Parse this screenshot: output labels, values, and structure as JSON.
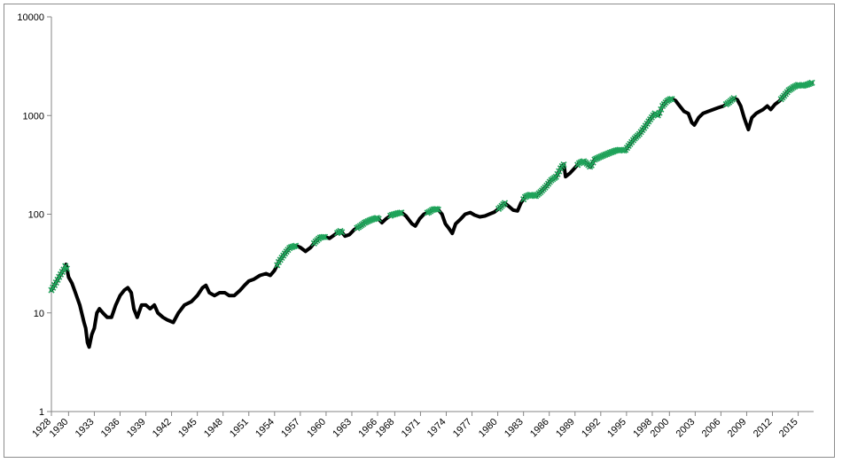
{
  "chart_data": {
    "type": "line",
    "y_scale": "log",
    "ylim": [
      1,
      10000
    ],
    "xlim": [
      1928,
      2016.8
    ],
    "y_ticks": [
      "1",
      "10",
      "100",
      "1000",
      "10000"
    ],
    "x_ticks": [
      "1928",
      "1930",
      "1933",
      "1936",
      "1939",
      "1942",
      "1945",
      "1948",
      "1951",
      "1954",
      "1957",
      "1960",
      "1963",
      "1966",
      "1968",
      "1971",
      "1974",
      "1977",
      "1980",
      "1983",
      "1986",
      "1989",
      "1992",
      "1995",
      "1998",
      "2000",
      "2003",
      "2006",
      "2009",
      "2012",
      "2015"
    ],
    "grid": false,
    "legend": "none",
    "series": [
      {
        "line_color": "#000000",
        "marker_color": "#1fa35a",
        "points": [
          [
            1928.0,
            17
          ],
          [
            1928.5,
            20
          ],
          [
            1929.0,
            24
          ],
          [
            1929.5,
            28
          ],
          [
            1929.7,
            31
          ],
          [
            1930.0,
            23
          ],
          [
            1930.4,
            20
          ],
          [
            1930.8,
            16
          ],
          [
            1931.3,
            12
          ],
          [
            1931.8,
            8
          ],
          [
            1932.0,
            7
          ],
          [
            1932.2,
            5
          ],
          [
            1932.4,
            4.5
          ],
          [
            1932.7,
            6
          ],
          [
            1933.0,
            7
          ],
          [
            1933.3,
            10
          ],
          [
            1933.6,
            11
          ],
          [
            1934.0,
            10
          ],
          [
            1934.5,
            9
          ],
          [
            1935.0,
            9
          ],
          [
            1935.5,
            12
          ],
          [
            1936.0,
            15
          ],
          [
            1936.5,
            17
          ],
          [
            1936.9,
            18
          ],
          [
            1937.3,
            16
          ],
          [
            1937.6,
            11
          ],
          [
            1938.0,
            9
          ],
          [
            1938.5,
            12
          ],
          [
            1939.0,
            12
          ],
          [
            1939.5,
            11
          ],
          [
            1940.0,
            12
          ],
          [
            1940.4,
            10
          ],
          [
            1941.0,
            9
          ],
          [
            1941.5,
            8.5
          ],
          [
            1942.2,
            8
          ],
          [
            1942.8,
            10
          ],
          [
            1943.5,
            12
          ],
          [
            1944.3,
            13
          ],
          [
            1945.0,
            15
          ],
          [
            1945.6,
            18
          ],
          [
            1946.0,
            19
          ],
          [
            1946.4,
            16
          ],
          [
            1947.0,
            15
          ],
          [
            1947.6,
            16
          ],
          [
            1948.2,
            16
          ],
          [
            1948.7,
            15
          ],
          [
            1949.3,
            15
          ],
          [
            1950.0,
            17
          ],
          [
            1950.5,
            19
          ],
          [
            1951.0,
            21
          ],
          [
            1951.6,
            22
          ],
          [
            1952.3,
            24
          ],
          [
            1953.0,
            25
          ],
          [
            1953.5,
            24
          ],
          [
            1954.0,
            27
          ],
          [
            1954.5,
            33
          ],
          [
            1955.2,
            40
          ],
          [
            1955.8,
            46
          ],
          [
            1956.5,
            48
          ],
          [
            1957.0,
            46
          ],
          [
            1957.6,
            42
          ],
          [
            1958.2,
            46
          ],
          [
            1958.7,
            52
          ],
          [
            1959.3,
            58
          ],
          [
            1959.8,
            59
          ],
          [
            1960.4,
            57
          ],
          [
            1961.0,
            62
          ],
          [
            1961.7,
            68
          ],
          [
            1962.2,
            60
          ],
          [
            1962.7,
            62
          ],
          [
            1963.3,
            70
          ],
          [
            1963.9,
            75
          ],
          [
            1964.5,
            82
          ],
          [
            1965.0,
            86
          ],
          [
            1965.6,
            90
          ],
          [
            1966.0,
            92
          ],
          [
            1966.5,
            82
          ],
          [
            1967.0,
            90
          ],
          [
            1967.6,
            98
          ],
          [
            1968.3,
            102
          ],
          [
            1968.8,
            104
          ],
          [
            1969.3,
            96
          ],
          [
            1970.0,
            80
          ],
          [
            1970.4,
            76
          ],
          [
            1970.9,
            90
          ],
          [
            1971.4,
            100
          ],
          [
            1971.9,
            104
          ],
          [
            1972.5,
            112
          ],
          [
            1973.0,
            113
          ],
          [
            1973.5,
            100
          ],
          [
            1973.9,
            80
          ],
          [
            1974.3,
            72
          ],
          [
            1974.7,
            64
          ],
          [
            1975.1,
            80
          ],
          [
            1975.6,
            88
          ],
          [
            1976.2,
            100
          ],
          [
            1976.8,
            104
          ],
          [
            1977.3,
            98
          ],
          [
            1977.9,
            94
          ],
          [
            1978.5,
            96
          ],
          [
            1979.0,
            100
          ],
          [
            1979.6,
            105
          ],
          [
            1980.2,
            115
          ],
          [
            1980.8,
            130
          ],
          [
            1981.2,
            122
          ],
          [
            1981.8,
            110
          ],
          [
            1982.3,
            108
          ],
          [
            1982.7,
            130
          ],
          [
            1983.2,
            150
          ],
          [
            1983.8,
            158
          ],
          [
            1984.4,
            152
          ],
          [
            1985.0,
            168
          ],
          [
            1985.6,
            190
          ],
          [
            1986.2,
            220
          ],
          [
            1986.8,
            240
          ],
          [
            1987.4,
            300
          ],
          [
            1987.7,
            320
          ],
          [
            1987.9,
            240
          ],
          [
            1988.4,
            260
          ],
          [
            1988.9,
            290
          ],
          [
            1989.5,
            330
          ],
          [
            1990.0,
            345
          ],
          [
            1990.5,
            320
          ],
          [
            1990.8,
            300
          ],
          [
            1991.3,
            360
          ],
          [
            1991.9,
            380
          ],
          [
            1992.5,
            400
          ],
          [
            1993.1,
            420
          ],
          [
            1993.7,
            440
          ],
          [
            1994.2,
            450
          ],
          [
            1994.8,
            440
          ],
          [
            1995.3,
            500
          ],
          [
            1995.9,
            580
          ],
          [
            1996.5,
            650
          ],
          [
            1997.1,
            760
          ],
          [
            1997.7,
            900
          ],
          [
            1998.3,
            1050
          ],
          [
            1998.7,
            1000
          ],
          [
            1999.2,
            1250
          ],
          [
            1999.7,
            1400
          ],
          [
            2000.2,
            1480
          ],
          [
            2000.7,
            1420
          ],
          [
            2001.2,
            1250
          ],
          [
            2001.7,
            1100
          ],
          [
            2002.2,
            1050
          ],
          [
            2002.6,
            850
          ],
          [
            2002.9,
            800
          ],
          [
            2003.4,
            950
          ],
          [
            2003.9,
            1050
          ],
          [
            2004.5,
            1100
          ],
          [
            2005.1,
            1150
          ],
          [
            2005.7,
            1200
          ],
          [
            2006.3,
            1250
          ],
          [
            2006.9,
            1350
          ],
          [
            2007.5,
            1500
          ],
          [
            2007.9,
            1450
          ],
          [
            2008.3,
            1250
          ],
          [
            2008.7,
            950
          ],
          [
            2009.0,
            800
          ],
          [
            2009.2,
            720
          ],
          [
            2009.6,
            950
          ],
          [
            2010.1,
            1050
          ],
          [
            2010.5,
            1100
          ],
          [
            2010.9,
            1150
          ],
          [
            2011.4,
            1250
          ],
          [
            2011.8,
            1150
          ],
          [
            2012.3,
            1300
          ],
          [
            2012.8,
            1400
          ],
          [
            2013.4,
            1600
          ],
          [
            2013.9,
            1800
          ],
          [
            2014.5,
            1950
          ],
          [
            2015.0,
            2050
          ],
          [
            2015.5,
            2000
          ],
          [
            2016.0,
            2050
          ],
          [
            2016.6,
            2150
          ]
        ],
        "marker_ranges": [
          [
            1928.0,
            1929.8
          ],
          [
            1954.3,
            1956.6
          ],
          [
            1958.6,
            1959.9
          ],
          [
            1961.3,
            1962.0
          ],
          [
            1963.6,
            1966.2
          ],
          [
            1967.5,
            1968.9
          ],
          [
            1971.8,
            1973.1
          ],
          [
            1980.1,
            1980.9
          ],
          [
            1983.0,
            1987.8
          ],
          [
            1989.3,
            2000.4
          ],
          [
            2006.6,
            2007.6
          ],
          [
            2013.0,
            2016.6
          ]
        ]
      }
    ]
  }
}
